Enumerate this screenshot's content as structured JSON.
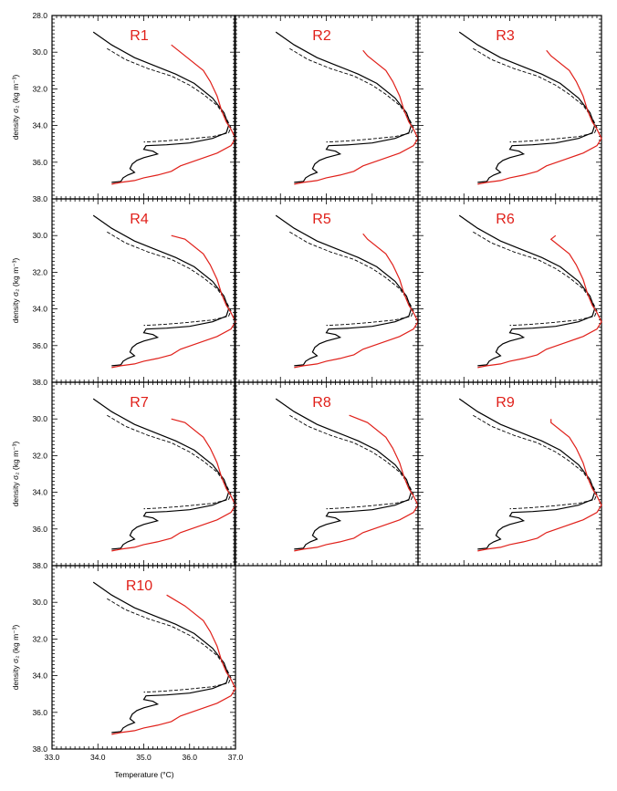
{
  "figure": {
    "ylabel": "density σ₂ (kg m⁻³)",
    "xlabel": "Temperature (°C)"
  },
  "chart_data": {
    "type": "line",
    "xlim": [
      33.0,
      37.0
    ],
    "ylim": [
      28.0,
      38.0
    ],
    "y_inverted": true,
    "grid": false,
    "x_ticks": [
      "33.0",
      "34.0",
      "35.0",
      "36.0",
      "37.0"
    ],
    "y_ticks": [
      "28.0",
      "30.0",
      "32.0",
      "34.0",
      "36.0",
      "38.0"
    ],
    "line_colors": {
      "black": "#000000",
      "red": "#e0201a"
    },
    "panels": [
      {
        "title": "R1",
        "red_top": [
          35.6,
          29.6
        ]
      },
      {
        "title": "R2",
        "red_top": [
          35.8,
          29.9
        ]
      },
      {
        "title": "R3",
        "red_top": [
          35.8,
          29.9
        ]
      },
      {
        "title": "R4",
        "red_top": [
          35.6,
          30.0
        ]
      },
      {
        "title": "R5",
        "red_top": [
          35.8,
          29.9
        ]
      },
      {
        "title": "R6",
        "red_top": [
          36.0,
          30.0
        ]
      },
      {
        "title": "R7",
        "red_top": [
          35.6,
          30.0
        ]
      },
      {
        "title": "R8",
        "red_top": [
          35.5,
          29.8
        ]
      },
      {
        "title": "R9",
        "red_top": [
          35.9,
          30.0
        ]
      },
      {
        "title": "R10",
        "red_top": [
          35.5,
          29.6
        ]
      }
    ],
    "black_solid": [
      [
        33.9,
        28.9
      ],
      [
        34.3,
        29.6
      ],
      [
        34.8,
        30.3
      ],
      [
        35.2,
        30.7
      ],
      [
        35.7,
        31.2
      ],
      [
        36.1,
        31.7
      ],
      [
        36.5,
        32.5
      ],
      [
        36.75,
        33.3
      ],
      [
        36.85,
        34.0
      ],
      [
        36.8,
        34.4
      ],
      [
        36.5,
        34.7
      ],
      [
        36.0,
        34.95
      ],
      [
        35.5,
        35.05
      ],
      [
        35.05,
        35.1
      ],
      [
        35.0,
        35.3
      ],
      [
        35.2,
        35.4
      ],
      [
        35.3,
        35.55
      ],
      [
        35.0,
        35.75
      ],
      [
        34.85,
        35.9
      ],
      [
        34.75,
        36.1
      ],
      [
        34.7,
        36.35
      ],
      [
        34.8,
        36.55
      ],
      [
        34.65,
        36.7
      ],
      [
        34.55,
        36.85
      ],
      [
        34.5,
        37.05
      ],
      [
        34.3,
        37.1
      ]
    ],
    "black_dashed": [
      [
        34.2,
        29.8
      ],
      [
        34.6,
        30.4
      ],
      [
        35.1,
        30.9
      ],
      [
        35.6,
        31.3
      ],
      [
        36.0,
        31.8
      ],
      [
        36.3,
        32.3
      ],
      [
        36.6,
        32.9
      ],
      [
        36.8,
        33.6
      ],
      [
        36.9,
        34.1
      ],
      [
        36.85,
        34.4
      ],
      [
        36.5,
        34.6
      ],
      [
        35.9,
        34.75
      ],
      [
        35.4,
        34.85
      ],
      [
        35.0,
        34.9
      ]
    ],
    "red_solid": [
      [
        35.6,
        29.6
      ],
      [
        35.9,
        30.2
      ],
      [
        36.3,
        31.0
      ],
      [
        36.45,
        31.6
      ],
      [
        36.6,
        32.4
      ],
      [
        36.7,
        33.2
      ],
      [
        36.8,
        33.8
      ],
      [
        36.9,
        34.2
      ],
      [
        37.0,
        34.7
      ],
      [
        36.9,
        35.1
      ],
      [
        36.6,
        35.5
      ],
      [
        36.2,
        35.85
      ],
      [
        35.8,
        36.2
      ],
      [
        35.6,
        36.5
      ],
      [
        35.3,
        36.7
      ],
      [
        35.0,
        36.85
      ],
      [
        34.8,
        37.0
      ],
      [
        34.5,
        37.1
      ],
      [
        34.3,
        37.2
      ]
    ]
  }
}
